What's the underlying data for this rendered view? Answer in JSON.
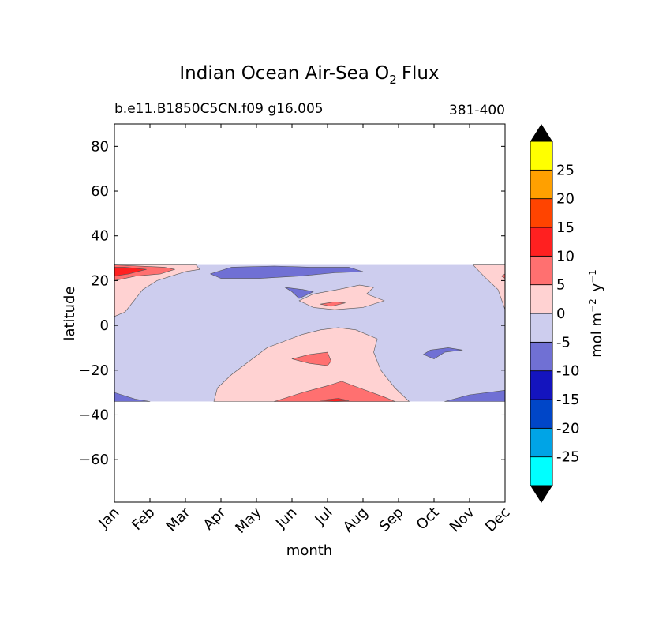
{
  "chart_data": {
    "type": "heatmap",
    "title": {
      "main": "Indian Ocean Air-Sea O",
      "sub": "2",
      "tail": "Flux"
    },
    "subtitle_left": "b.e11.B1850C5CN.f09 g16.005",
    "subtitle_right": "381-400",
    "xlabel": "month",
    "ylabel": "latitude",
    "x_tick_labels": [
      "Jan",
      "Feb",
      "Mar",
      "Apr",
      "May",
      "Jun",
      "Jul",
      "Aug",
      "Sep",
      "Oct",
      "Nov",
      "Dec"
    ],
    "xlim": [
      0,
      11
    ],
    "ylim": [
      -79,
      90
    ],
    "y_ticks": [
      80,
      60,
      40,
      20,
      0,
      -20,
      -40,
      -60
    ],
    "y_tick_labels": [
      "80",
      "60",
      "40",
      "20",
      "0",
      "−20",
      "−40",
      "−60"
    ],
    "data_lat_range": [
      -34,
      27
    ],
    "colorbar": {
      "label_main": "mol m",
      "label_exp1": "−2",
      "label_mid": " y",
      "label_exp2": "−1",
      "levels": [
        -30,
        -25,
        -20,
        -15,
        -10,
        -5,
        0,
        5,
        10,
        15,
        20,
        25,
        30
      ],
      "tick_labels": [
        "-25",
        "-20",
        "-15",
        "-10",
        "-5",
        "0",
        "5",
        "10",
        "15",
        "20",
        "25"
      ],
      "tick_values": [
        -25,
        -20,
        -15,
        -10,
        -5,
        0,
        5,
        10,
        15,
        20,
        25
      ],
      "colors": [
        "#00ffff",
        "#00a4e6",
        "#0046c8",
        "#1414be",
        "#7070d4",
        "#cdcdee",
        "#ffd2d2",
        "#ff7070",
        "#ff2020",
        "#ff4400",
        "#ffa000",
        "#ffff00"
      ],
      "extend": "both",
      "extend_color": "#000000"
    },
    "background_level_color": "#cdcdee",
    "regions": [
      {
        "level": "0 to 5",
        "color": "#ffd2d2",
        "points": [
          [
            0,
            4
          ],
          [
            0.3,
            6
          ],
          [
            0.8,
            16
          ],
          [
            1.2,
            20
          ],
          [
            1.6,
            22
          ],
          [
            2.0,
            24
          ],
          [
            2.4,
            25
          ],
          [
            2.3,
            27
          ],
          [
            0,
            27
          ]
        ]
      },
      {
        "level": "0 to 5",
        "color": "#ffd2d2",
        "points": [
          [
            10.1,
            27
          ],
          [
            10.4,
            22
          ],
          [
            10.8,
            16
          ],
          [
            11,
            7
          ],
          [
            11,
            27
          ]
        ]
      },
      {
        "level": "0 to 5",
        "color": "#ffd2d2",
        "points": [
          [
            2.8,
            -34
          ],
          [
            2.9,
            -28
          ],
          [
            3.3,
            -22
          ],
          [
            3.8,
            -16
          ],
          [
            4.3,
            -10
          ],
          [
            4.8,
            -7
          ],
          [
            5.3,
            -4
          ],
          [
            5.8,
            -2
          ],
          [
            6.3,
            -1
          ],
          [
            6.8,
            -2
          ],
          [
            7.4,
            -6
          ],
          [
            7.3,
            -12
          ],
          [
            7.5,
            -20
          ],
          [
            7.9,
            -28
          ],
          [
            8.3,
            -34
          ]
        ]
      },
      {
        "level": "0 to 5",
        "color": "#ffd2d2",
        "points": [
          [
            5.2,
            11
          ],
          [
            5.6,
            14
          ],
          [
            6.3,
            16
          ],
          [
            6.9,
            18
          ],
          [
            7.3,
            17
          ],
          [
            7.1,
            14
          ],
          [
            7.6,
            11
          ],
          [
            7.0,
            8
          ],
          [
            6.2,
            7
          ],
          [
            5.6,
            8
          ]
        ]
      },
      {
        "level": "5 to 10",
        "color": "#ff7070",
        "points": [
          [
            4.5,
            -34
          ],
          [
            5.3,
            -30
          ],
          [
            6.0,
            -27
          ],
          [
            6.4,
            -25
          ],
          [
            6.9,
            -28
          ],
          [
            7.6,
            -32
          ],
          [
            7.9,
            -34
          ]
        ]
      },
      {
        "level": "5 to 10",
        "color": "#ff7070",
        "points": [
          [
            5.0,
            -15
          ],
          [
            5.5,
            -13
          ],
          [
            6.0,
            -12
          ],
          [
            6.1,
            -16
          ],
          [
            6.0,
            -18
          ],
          [
            5.5,
            -17
          ]
        ]
      },
      {
        "level": "5 to 10",
        "color": "#ff7070",
        "points": [
          [
            0,
            20
          ],
          [
            0.6,
            22
          ],
          [
            1.3,
            23
          ],
          [
            1.7,
            25
          ],
          [
            1.4,
            26
          ],
          [
            0,
            27
          ]
        ]
      },
      {
        "level": "5 to 10",
        "color": "#ff7070",
        "points": [
          [
            10.9,
            22
          ],
          [
            11,
            21
          ],
          [
            11,
            23
          ]
        ]
      },
      {
        "level": "5 to 10",
        "color": "#ff7070",
        "points": [
          [
            5.8,
            9.5
          ],
          [
            6.2,
            10.5
          ],
          [
            6.5,
            10
          ],
          [
            6.1,
            8.5
          ]
        ]
      },
      {
        "level": "10 to 15",
        "color": "#ff2020",
        "points": [
          [
            0,
            22
          ],
          [
            0.4,
            23
          ],
          [
            0.9,
            25
          ],
          [
            0.3,
            26
          ],
          [
            0,
            26
          ]
        ]
      },
      {
        "level": "10 to 15",
        "color": "#ff2020",
        "points": [
          [
            5.8,
            -33.5
          ],
          [
            6.3,
            -32.6
          ],
          [
            6.6,
            -33.6
          ],
          [
            6.2,
            -34
          ]
        ]
      },
      {
        "level": "-10 to -5",
        "color": "#7070d4",
        "points": [
          [
            2.7,
            23
          ],
          [
            3.3,
            26
          ],
          [
            4.5,
            26.5
          ],
          [
            5.5,
            26
          ],
          [
            6.6,
            26
          ],
          [
            7.0,
            24
          ],
          [
            6.2,
            23.5
          ],
          [
            5.2,
            22
          ],
          [
            4.1,
            21
          ],
          [
            3.0,
            21
          ]
        ]
      },
      {
        "level": "-10 to -5",
        "color": "#7070d4",
        "points": [
          [
            0,
            -34
          ],
          [
            0,
            -30
          ],
          [
            0.6,
            -33
          ],
          [
            1.0,
            -34
          ]
        ]
      },
      {
        "level": "-10 to -5",
        "color": "#7070d4",
        "points": [
          [
            9.3,
            -34
          ],
          [
            10,
            -31
          ],
          [
            11,
            -29
          ],
          [
            11,
            -34
          ]
        ]
      },
      {
        "level": "-10 to -5",
        "color": "#7070d4",
        "points": [
          [
            8.9,
            -11
          ],
          [
            9.4,
            -10
          ],
          [
            9.8,
            -11
          ],
          [
            9.3,
            -12
          ],
          [
            9.0,
            -15
          ],
          [
            8.7,
            -13
          ]
        ]
      },
      {
        "level": "-10 to -5",
        "color": "#7070d4",
        "points": [
          [
            4.8,
            17
          ],
          [
            5.3,
            16
          ],
          [
            5.6,
            15
          ],
          [
            5.2,
            12
          ],
          [
            5.0,
            15
          ]
        ]
      }
    ]
  }
}
